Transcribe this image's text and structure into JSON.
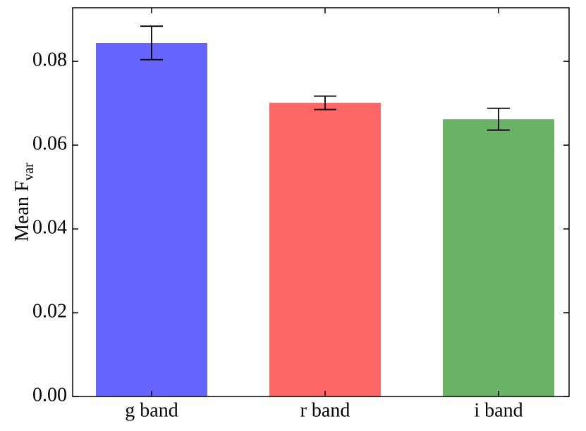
{
  "chart_data": {
    "type": "bar",
    "ylabel": {
      "text": "Mean F",
      "subscript": "var"
    },
    "categories": [
      "g band",
      "r band",
      "i band"
    ],
    "values": [
      0.0844,
      0.0701,
      0.0662
    ],
    "errors": [
      0.004,
      0.0016,
      0.0026
    ],
    "colors": [
      "#6666ff",
      "#ff6666",
      "#6ab266"
    ],
    "ylim": [
      0,
      0.0928
    ],
    "yticks": [
      {
        "value": 0,
        "label": "0.00"
      },
      {
        "value": 0.02,
        "label": "0.02"
      },
      {
        "value": 0.04,
        "label": "0.04"
      },
      {
        "value": 0.06,
        "label": "0.06"
      },
      {
        "value": 0.08,
        "label": "0.08"
      }
    ]
  }
}
